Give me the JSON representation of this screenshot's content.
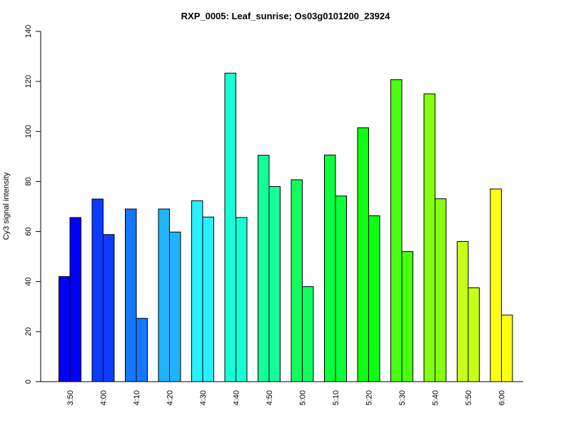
{
  "chart_data": {
    "type": "bar",
    "title": "RXP_0005: Leaf_sunrise; Os03g0101200_23924",
    "xlabel": "",
    "ylabel": "Cy3 signal intensity",
    "ylim": [
      0,
      140
    ],
    "yticks": [
      0,
      20,
      40,
      60,
      80,
      100,
      120,
      140
    ],
    "grid": false,
    "legend": "none",
    "categories": [
      "3:50",
      "4:00",
      "4:10",
      "4:20",
      "4:30",
      "4:40",
      "4:50",
      "5:00",
      "5:10",
      "5:20",
      "5:30",
      "5:40",
      "5:50",
      "6:00"
    ],
    "colors": [
      "#0000FF",
      "#0A3CFF",
      "#1477FF",
      "#1EB4FF",
      "#28F0FF",
      "#18FFD6",
      "#14FF99",
      "#10FF5C",
      "#0CFF3A",
      "#0CFF10",
      "#49FF10",
      "#85FF10",
      "#C6FF18",
      "#FFFF10"
    ],
    "series": [
      {
        "values": [
          42,
          73,
          69,
          69,
          72.3,
          123.3,
          90.5,
          80.7,
          90.6,
          101.5,
          120.7,
          115,
          56,
          77
        ]
      },
      {
        "values": [
          65.6,
          58.8,
          25.3,
          59.8,
          65.8,
          65.6,
          78,
          38,
          74.2,
          66.3,
          52,
          73.1,
          37.5,
          26.6
        ]
      }
    ]
  }
}
